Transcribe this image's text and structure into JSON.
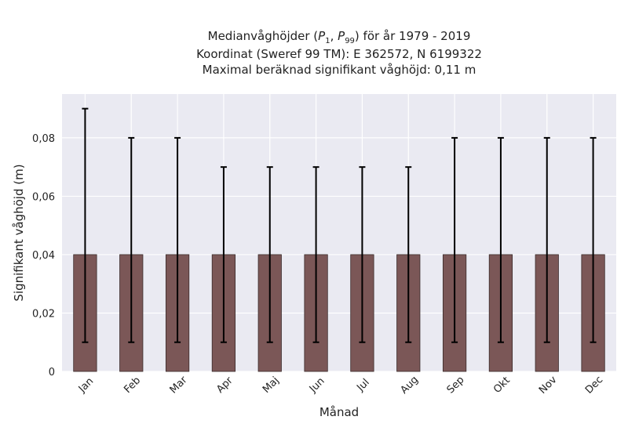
{
  "chart_data": {
    "type": "bar",
    "title_lines": [
      "Medianvåghöjder (P1, P99) för år 1979 - 2019",
      "Koordinat (Sweref 99 TM): E 362572, N 6199322",
      "Maximal beräknad signifikant våghöjd: 0,11 m"
    ],
    "xlabel": "Månad",
    "ylabel": "Signifikant våghöjd (m)",
    "categories": [
      "Jan",
      "Feb",
      "Mar",
      "Apr",
      "Maj",
      "Jun",
      "Jul",
      "Aug",
      "Sep",
      "Okt",
      "Nov",
      "Dec"
    ],
    "values": [
      0.04,
      0.04,
      0.04,
      0.04,
      0.04,
      0.04,
      0.04,
      0.04,
      0.04,
      0.04,
      0.04,
      0.04
    ],
    "error_low": [
      0.01,
      0.01,
      0.01,
      0.01,
      0.01,
      0.01,
      0.01,
      0.01,
      0.01,
      0.01,
      0.01,
      0.01
    ],
    "error_high": [
      0.09,
      0.08,
      0.08,
      0.07,
      0.07,
      0.07,
      0.07,
      0.07,
      0.08,
      0.08,
      0.08,
      0.08
    ],
    "ylim": [
      0,
      0.095
    ],
    "yticks": [
      0,
      0.02,
      0.04,
      0.06,
      0.08
    ],
    "ytick_labels": [
      "0",
      "0,02",
      "0,04",
      "0,06",
      "0,08"
    ],
    "grid": true,
    "colors": {
      "bar": "#7b5757",
      "bar_edge": "#3a2a2a",
      "error_bar": "#000000",
      "plot_background": "#eaeaf2",
      "grid": "#ffffff"
    }
  }
}
